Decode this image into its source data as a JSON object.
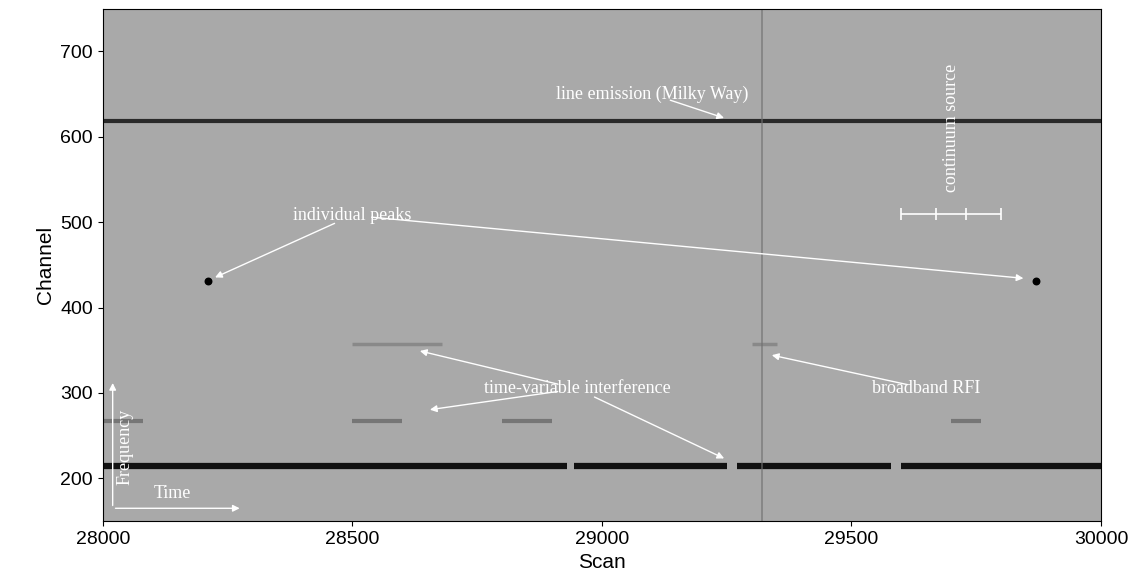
{
  "chart_data": {
    "type": "dynamic_spectrum",
    "xlabel": "Scan",
    "ylabel": "Channel",
    "xlim": [
      28000,
      30000
    ],
    "ylim": [
      150,
      750
    ],
    "xticks": [
      28000,
      28500,
      29000,
      29500,
      30000
    ],
    "yticks": [
      200,
      300,
      400,
      500,
      600,
      700
    ],
    "lines": [
      {
        "channel": 618,
        "color": "#2a2a2a",
        "segments": [
          [
            28000,
            30000
          ]
        ]
      },
      {
        "channel": 215,
        "color": "#111111",
        "segments": [
          [
            28000,
            28930
          ],
          [
            28945,
            29250
          ],
          [
            29270,
            29580
          ],
          [
            29600,
            30000
          ]
        ]
      },
      {
        "channel": 267,
        "color": "#555555",
        "segments": [
          [
            28000,
            28080
          ],
          [
            28500,
            28600
          ],
          [
            28800,
            28900
          ],
          [
            29700,
            29760
          ]
        ]
      },
      {
        "channel": 357,
        "color": "#6a6a6a",
        "segments": [
          [
            28500,
            28680
          ],
          [
            29300,
            29350
          ]
        ]
      }
    ],
    "peaks": {
      "x": [
        28210,
        29870
      ],
      "y": [
        431,
        431
      ],
      "color": "#000000"
    },
    "broadband": {
      "scan": 29320,
      "color": "#707070"
    },
    "continuum": {
      "channel": 510,
      "x": [
        29600,
        29670,
        29730,
        29800
      ],
      "label": "continuum source",
      "color": "#ffffff"
    },
    "annotations": [
      {
        "text": "line emission (Milky Way)",
        "targets": [
          [
            29250,
            621
          ]
        ]
      },
      {
        "text": "individual peaks",
        "targets": [
          [
            28220,
            434
          ],
          [
            29850,
            434
          ]
        ]
      },
      {
        "text": "time-variable interference",
        "targets": [
          [
            28630,
            350
          ],
          [
            28650,
            280
          ],
          [
            29250,
            222
          ]
        ]
      },
      {
        "text": "broadband RFI",
        "targets": [
          [
            29335,
            345
          ]
        ]
      }
    ],
    "axis_arrows": {
      "x": "Time",
      "y": "Frequency"
    }
  }
}
